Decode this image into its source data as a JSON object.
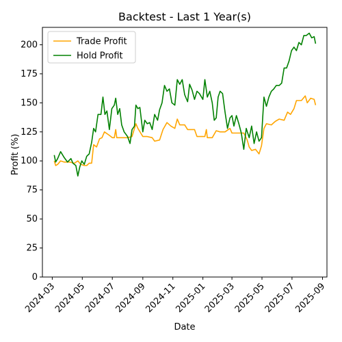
{
  "chart_data": {
    "type": "line",
    "title": "Backtest - Last 1 Year(s)",
    "xlabel": "Date",
    "ylabel": "Profit (%)",
    "ylim": [
      0,
      215
    ],
    "yticks": [
      0,
      25,
      50,
      75,
      100,
      125,
      150,
      175,
      200
    ],
    "xlim": [
      "2024-02-10",
      "2025-09-10"
    ],
    "xticks": [
      "2024-03",
      "2024-05",
      "2024-07",
      "2024-09",
      "2024-11",
      "2025-01",
      "2025-03",
      "2025-05",
      "2025-07",
      "2025-09"
    ],
    "grid": false,
    "legend": "top-left",
    "series": [
      {
        "name": "Trade Profit",
        "color": "#ffa500",
        "points": [
          [
            "2024-03-05",
            100
          ],
          [
            "2024-03-08",
            96
          ],
          [
            "2024-03-12",
            97
          ],
          [
            "2024-03-18",
            100
          ],
          [
            "2024-03-25",
            99
          ],
          [
            "2024-04-05",
            99
          ],
          [
            "2024-04-15",
            98
          ],
          [
            "2024-04-22",
            100
          ],
          [
            "2024-04-28",
            97
          ],
          [
            "2024-05-05",
            96
          ],
          [
            "2024-05-10",
            96
          ],
          [
            "2024-05-15",
            98
          ],
          [
            "2024-05-20",
            98
          ],
          [
            "2024-05-24",
            114
          ],
          [
            "2024-05-30",
            112
          ],
          [
            "2024-06-05",
            119
          ],
          [
            "2024-06-10",
            120
          ],
          [
            "2024-06-15",
            125
          ],
          [
            "2024-06-25",
            122
          ],
          [
            "2024-07-01",
            120
          ],
          [
            "2024-07-05",
            120
          ],
          [
            "2024-07-08",
            127
          ],
          [
            "2024-07-10",
            120
          ],
          [
            "2024-07-20",
            120
          ],
          [
            "2024-08-01",
            120
          ],
          [
            "2024-08-10",
            121
          ],
          [
            "2024-08-18",
            132
          ],
          [
            "2024-08-22",
            128
          ],
          [
            "2024-09-01",
            121
          ],
          [
            "2024-09-10",
            121
          ],
          [
            "2024-09-20",
            120
          ],
          [
            "2024-09-25",
            117
          ],
          [
            "2024-10-05",
            118
          ],
          [
            "2024-10-12",
            127
          ],
          [
            "2024-10-20",
            133
          ],
          [
            "2024-10-28",
            130
          ],
          [
            "2024-11-05",
            128
          ],
          [
            "2024-11-10",
            136
          ],
          [
            "2024-11-15",
            131
          ],
          [
            "2024-11-25",
            131
          ],
          [
            "2024-12-01",
            127
          ],
          [
            "2024-12-15",
            127
          ],
          [
            "2024-12-20",
            121
          ],
          [
            "2025-01-05",
            121
          ],
          [
            "2025-01-08",
            127
          ],
          [
            "2025-01-10",
            120
          ],
          [
            "2025-01-20",
            120
          ],
          [
            "2025-01-28",
            126
          ],
          [
            "2025-02-05",
            125
          ],
          [
            "2025-02-15",
            125
          ],
          [
            "2025-02-25",
            128
          ],
          [
            "2025-03-01",
            124
          ],
          [
            "2025-03-15",
            124
          ],
          [
            "2025-03-25",
            124
          ],
          [
            "2025-04-01",
            118
          ],
          [
            "2025-04-05",
            112
          ],
          [
            "2025-04-10",
            109
          ],
          [
            "2025-04-18",
            110
          ],
          [
            "2025-04-25",
            106
          ],
          [
            "2025-04-30",
            113
          ],
          [
            "2025-05-05",
            128
          ],
          [
            "2025-05-10",
            132
          ],
          [
            "2025-05-20",
            131
          ],
          [
            "2025-05-28",
            134
          ],
          [
            "2025-06-05",
            136
          ],
          [
            "2025-06-15",
            135
          ],
          [
            "2025-06-22",
            142
          ],
          [
            "2025-06-28",
            140
          ],
          [
            "2025-07-05",
            145
          ],
          [
            "2025-07-10",
            152
          ],
          [
            "2025-07-20",
            152
          ],
          [
            "2025-07-28",
            156
          ],
          [
            "2025-08-01",
            150
          ],
          [
            "2025-08-08",
            154
          ],
          [
            "2025-08-15",
            153
          ],
          [
            "2025-08-18",
            148
          ]
        ]
      },
      {
        "name": "Hold Profit",
        "color": "#008000",
        "points": [
          [
            "2024-03-05",
            105
          ],
          [
            "2024-03-08",
            99
          ],
          [
            "2024-03-12",
            102
          ],
          [
            "2024-03-18",
            108
          ],
          [
            "2024-03-25",
            103
          ],
          [
            "2024-04-01",
            99
          ],
          [
            "2024-04-08",
            102
          ],
          [
            "2024-04-12",
            98
          ],
          [
            "2024-04-18",
            96
          ],
          [
            "2024-04-22",
            87
          ],
          [
            "2024-04-26",
            95
          ],
          [
            "2024-04-30",
            100
          ],
          [
            "2024-05-05",
            97
          ],
          [
            "2024-05-10",
            104
          ],
          [
            "2024-05-15",
            106
          ],
          [
            "2024-05-20",
            116
          ],
          [
            "2024-05-24",
            128
          ],
          [
            "2024-05-28",
            125
          ],
          [
            "2024-06-02",
            140
          ],
          [
            "2024-06-08",
            140
          ],
          [
            "2024-06-12",
            155
          ],
          [
            "2024-06-16",
            140
          ],
          [
            "2024-06-20",
            143
          ],
          [
            "2024-06-25",
            127
          ],
          [
            "2024-06-30",
            145
          ],
          [
            "2024-07-05",
            148
          ],
          [
            "2024-07-08",
            154
          ],
          [
            "2024-07-12",
            140
          ],
          [
            "2024-07-16",
            145
          ],
          [
            "2024-07-20",
            131
          ],
          [
            "2024-07-25",
            125
          ],
          [
            "2024-08-01",
            121
          ],
          [
            "2024-08-06",
            115
          ],
          [
            "2024-08-10",
            127
          ],
          [
            "2024-08-15",
            130
          ],
          [
            "2024-08-18",
            148
          ],
          [
            "2024-08-22",
            145
          ],
          [
            "2024-08-26",
            146
          ],
          [
            "2024-09-01",
            125
          ],
          [
            "2024-09-05",
            135
          ],
          [
            "2024-09-10",
            132
          ],
          [
            "2024-09-15",
            133
          ],
          [
            "2024-09-20",
            127
          ],
          [
            "2024-09-25",
            140
          ],
          [
            "2024-10-01",
            135
          ],
          [
            "2024-10-05",
            144
          ],
          [
            "2024-10-10",
            150
          ],
          [
            "2024-10-15",
            165
          ],
          [
            "2024-10-20",
            160
          ],
          [
            "2024-10-25",
            162
          ],
          [
            "2024-10-30",
            150
          ],
          [
            "2024-11-05",
            148
          ],
          [
            "2024-11-10",
            170
          ],
          [
            "2024-11-15",
            166
          ],
          [
            "2024-11-20",
            170
          ],
          [
            "2024-11-25",
            157
          ],
          [
            "2024-12-01",
            151
          ],
          [
            "2024-12-05",
            166
          ],
          [
            "2024-12-10",
            161
          ],
          [
            "2024-12-15",
            153
          ],
          [
            "2024-12-20",
            160
          ],
          [
            "2024-12-25",
            158
          ],
          [
            "2025-01-01",
            153
          ],
          [
            "2025-01-05",
            170
          ],
          [
            "2025-01-10",
            155
          ],
          [
            "2025-01-15",
            160
          ],
          [
            "2025-01-20",
            150
          ],
          [
            "2025-01-24",
            135
          ],
          [
            "2025-01-28",
            137
          ],
          [
            "2025-02-01",
            155
          ],
          [
            "2025-02-05",
            160
          ],
          [
            "2025-02-10",
            158
          ],
          [
            "2025-02-15",
            142
          ],
          [
            "2025-02-20",
            128
          ],
          [
            "2025-02-25",
            137
          ],
          [
            "2025-03-01",
            139
          ],
          [
            "2025-03-05",
            130
          ],
          [
            "2025-03-10",
            139
          ],
          [
            "2025-03-15",
            132
          ],
          [
            "2025-03-20",
            124
          ],
          [
            "2025-03-25",
            110
          ],
          [
            "2025-03-30",
            128
          ],
          [
            "2025-04-05",
            120
          ],
          [
            "2025-04-10",
            130
          ],
          [
            "2025-04-15",
            115
          ],
          [
            "2025-04-20",
            125
          ],
          [
            "2025-04-25",
            117
          ],
          [
            "2025-04-30",
            120
          ],
          [
            "2025-05-05",
            155
          ],
          [
            "2025-05-10",
            147
          ],
          [
            "2025-05-15",
            155
          ],
          [
            "2025-05-20",
            160
          ],
          [
            "2025-05-25",
            162
          ],
          [
            "2025-05-30",
            165
          ],
          [
            "2025-06-05",
            165
          ],
          [
            "2025-06-10",
            167
          ],
          [
            "2025-06-15",
            180
          ],
          [
            "2025-06-20",
            180
          ],
          [
            "2025-06-25",
            186
          ],
          [
            "2025-06-30",
            195
          ],
          [
            "2025-07-05",
            198
          ],
          [
            "2025-07-10",
            195
          ],
          [
            "2025-07-15",
            202
          ],
          [
            "2025-07-20",
            200
          ],
          [
            "2025-07-25",
            208
          ],
          [
            "2025-07-30",
            208
          ],
          [
            "2025-08-05",
            210
          ],
          [
            "2025-08-10",
            206
          ],
          [
            "2025-08-15",
            207
          ],
          [
            "2025-08-18",
            201
          ]
        ]
      }
    ]
  }
}
